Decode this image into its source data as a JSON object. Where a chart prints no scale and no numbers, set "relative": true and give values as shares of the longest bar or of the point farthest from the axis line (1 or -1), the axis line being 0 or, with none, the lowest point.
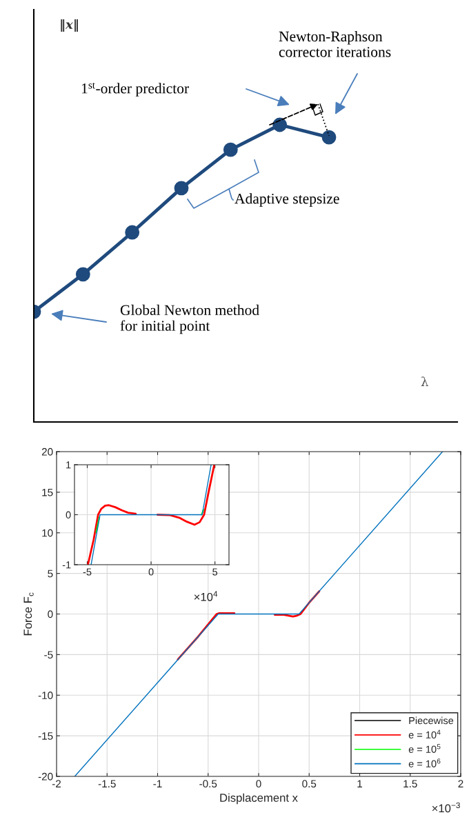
{
  "chart_data": [
    {
      "type": "line",
      "relative": true,
      "xlabel": "λ",
      "ylabel": "‖x‖",
      "marker": "circle",
      "categories": [
        null,
        null,
        null,
        null,
        null,
        null,
        null
      ],
      "series": [
        {
          "color": "#1f4a7d",
          "values": [
            0.371,
            0.497,
            0.638,
            0.787,
            0.916,
            1.0,
            0.958
          ]
        }
      ],
      "annotations": [
        "Newton-Raphson\ncorrector iterations",
        "1$^{st}$-order predictor",
        "Adaptive stepsize",
        "Global Newton method\nfor initial point"
      ]
    },
    {
      "type": "line",
      "xlabel": "Displacement x",
      "ylabel": "Force F$_{c}$",
      "xlim": [
        -2,
        2
      ],
      "xticks": [
        -2,
        -1.5,
        -1,
        -0.5,
        0,
        0.5,
        1,
        1.5,
        2
      ],
      "ylim": [
        -20,
        20
      ],
      "yticks": [
        -20,
        -15,
        -10,
        -5,
        0,
        5,
        10,
        15,
        20
      ],
      "grid": true,
      "legend": "bottom right",
      "annotations": [
        "×10$^{−3}$"
      ],
      "series": [
        {
          "name": "Piecewise",
          "color": "#000000"
        },
        {
          "name": "e = 10$^{4}$",
          "color": "#ff0000",
          "x": [
            -0.8,
            -0.6,
            -0.415,
            -0.39,
            -0.33,
            -0.24,
            -0.2,
            0.16,
            0.25,
            0.34,
            0.38,
            0.415,
            0.5,
            0.6
          ],
          "values": [
            -5.6,
            -2.8,
            0,
            0.1,
            0.1,
            0.1,
            null,
            -0.1,
            -0.1,
            -0.3,
            -0.2,
            0,
            1.4,
            2.8
          ]
        },
        {
          "name": "e = 10$^{5}$",
          "color": "#00ff00"
        },
        {
          "name": "e = 10$^{6}$",
          "color": "#0072bd",
          "x": [
            -1.82,
            -0.4,
            0.4,
            1.82
          ],
          "values": [
            -20,
            0,
            0,
            20
          ]
        }
      ]
    },
    {
      "type": "line",
      "xlim": [
        -6,
        6.1
      ],
      "xticks": [
        -5,
        0,
        5
      ],
      "ylim": [
        -1,
        1
      ],
      "yticks": [
        -1,
        0,
        1
      ],
      "grid": true,
      "annotations": [
        "×10$^{4}$"
      ],
      "series": [
        {
          "color": "#ff0000",
          "x": [
            -4.95,
            -4.5,
            -4.15,
            -3.9,
            -3.6,
            -3.3,
            -2.8,
            -2.3,
            -1.8,
            -1.2,
            0,
            0.5,
            1.5,
            2.2,
            2.8,
            3.4,
            3.8,
            4.15,
            4.5,
            4.95
          ],
          "values": [
            -1,
            -0.5,
            0,
            0.12,
            0.18,
            0.19,
            0.15,
            0.09,
            0.04,
            0.02,
            null,
            0,
            -0.01,
            -0.06,
            -0.14,
            -0.2,
            -0.15,
            0,
            0.45,
            1
          ]
        },
        {
          "color": "#00ff00",
          "x": [
            -4.3,
            -4.05,
            0,
            3.95,
            4.1
          ],
          "values": [
            -0.35,
            -0.05,
            null,
            0,
            0.1
          ]
        },
        {
          "color": "#0072bd",
          "x": [
            -4.7,
            -4,
            4,
            4.7
          ],
          "values": [
            -1,
            0,
            0,
            1
          ]
        }
      ]
    }
  ]
}
